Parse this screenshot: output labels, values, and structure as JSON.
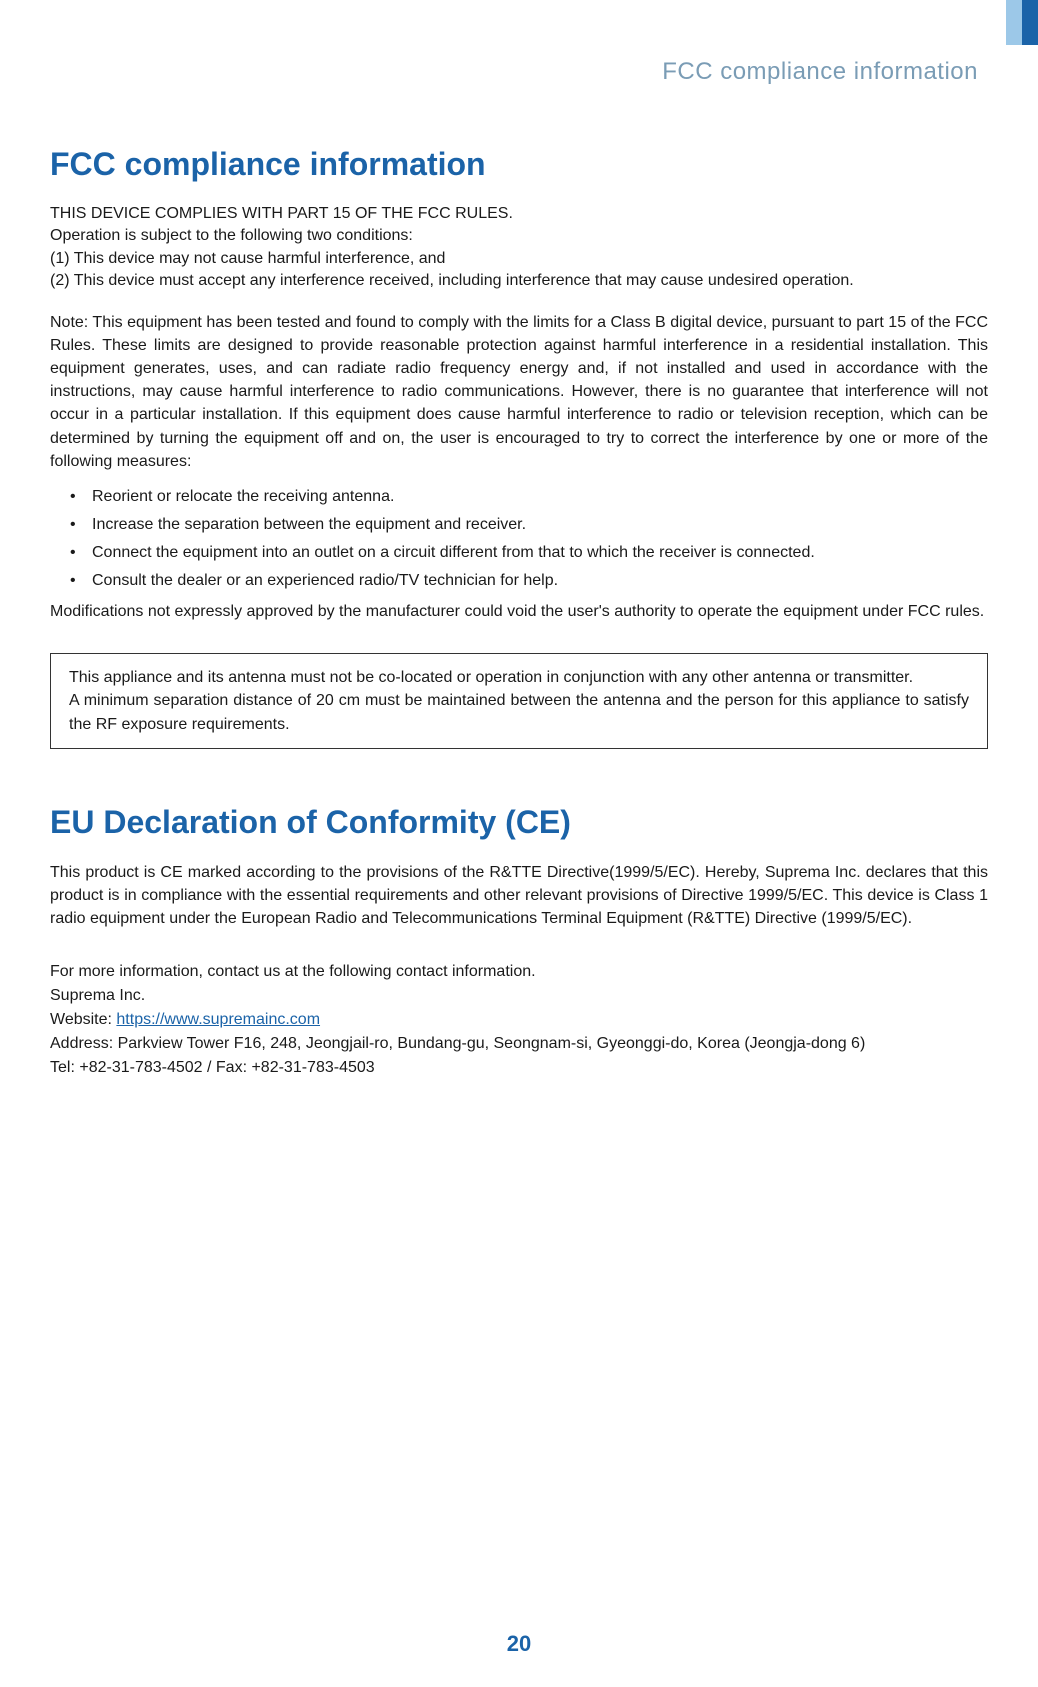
{
  "header": {
    "title": "FCC compliance information"
  },
  "fcc": {
    "heading": "FCC compliance information",
    "intro_line1": "THIS DEVICE COMPLIES WITH PART 15 OF THE FCC RULES.",
    "intro_line2": "Operation is subject to the following two conditions:",
    "intro_line3": "(1) This device may not cause harmful interference, and",
    "intro_line4": "(2) This device must accept any interference received, including interference that may cause undesired operation.",
    "note_para": "Note: This equipment has been tested and found to comply with the limits for a Class B digital device, pursuant to part 15 of the FCC Rules. These limits are designed to provide reasonable protection against harmful interference in a residential installation. This equipment generates, uses, and can radiate radio frequency energy and, if not installed and used in accordance with the instructions, may cause harmful interference to radio communications. However, there is no guarantee that interference will not occur in a particular installation. If this equipment does cause harmful interference to radio or television reception, which can be determined by turning the equipment off and on, the user is encouraged to try to correct the interference by one or more of the following measures:",
    "bullets": [
      "Reorient or relocate the receiving antenna.",
      "Increase the separation between the equipment and receiver.",
      "Connect the equipment into an outlet on a circuit different from that to which the receiver is connected.",
      "Consult the dealer or an experienced radio/TV technician for help."
    ],
    "mod_note": "Modifications not expressly approved by the manufacturer could void the user's authority to operate the equipment under FCC rules.",
    "boxed_note": "This appliance and its antenna must not be co-located or operation in conjunction with any other antenna or transmitter.\nA minimum separation distance of 20 cm must be maintained between the antenna and the person for this appliance to satisfy the RF exposure requirements."
  },
  "eu": {
    "heading": "EU Declaration of Conformity (CE)",
    "para": "This product is CE marked according to the provisions of the R&TTE Directive(1999/5/EC). Hereby, Suprema Inc. declares that this product is in compliance with the essential requirements and other relevant provisions of Directive 1999/5/EC. This device is Class 1 radio equipment under the European Radio and Telecommunications Terminal Equipment (R&TTE) Directive (1999/5/EC)."
  },
  "contact": {
    "line1": "For more information, contact us at the following contact information.",
    "company": "Suprema Inc.",
    "website_label": "Website: ",
    "website_url": "https://www.supremainc.com",
    "address": "Address: Parkview Tower F16, 248, Jeongjail-ro, Bundang-gu, Seongnam-si, Gyeonggi-do, Korea (Jeongja-dong 6)",
    "tel_fax": "Tel: +82-31-783-4502 / Fax: +82-31-783-4503"
  },
  "page_number": "20",
  "colors": {
    "heading_blue": "#1b63a8",
    "header_gray": "#7a9cb5",
    "tab_light": "#9cc8e8",
    "tab_dark": "#1b63a8",
    "text": "#1a1a1a"
  }
}
